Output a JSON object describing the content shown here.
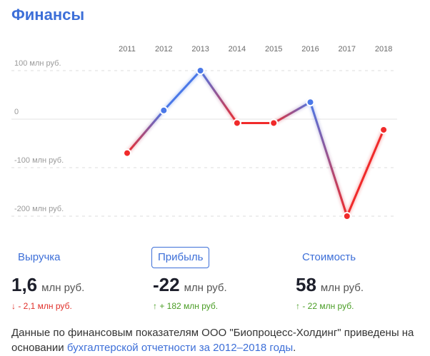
{
  "section_title": "Финансы",
  "chart_data": {
    "type": "line",
    "x": [
      "2011",
      "2012",
      "2013",
      "2014",
      "2015",
      "2016",
      "2017",
      "2018"
    ],
    "series": [
      {
        "values": [
          -70,
          18,
          100,
          -8,
          -8,
          35,
          -200,
          -22
        ]
      }
    ],
    "y_ticks": [
      {
        "value": 100,
        "label": "100 млн руб."
      },
      {
        "value": 0,
        "label": "0"
      },
      {
        "value": -100,
        "label": "-100 млн руб."
      },
      {
        "value": -200,
        "label": "-200 млн руб."
      }
    ],
    "ylim": [
      -210,
      115
    ],
    "colors": {
      "positive": "#4a78e8",
      "negative": "#f02a2a"
    },
    "grid": true
  },
  "tabs": [
    {
      "label": "Выручка",
      "active": false
    },
    {
      "label": "Прибыль",
      "active": true
    },
    {
      "label": "Стоимость",
      "active": false
    }
  ],
  "metrics": [
    {
      "value": "1,6",
      "unit": "млн руб.",
      "delta": "↓ - 2,1 млн руб.",
      "direction": "down"
    },
    {
      "value": "-22",
      "unit": "млн руб.",
      "delta": "↑ + 182 млн руб.",
      "direction": "up"
    },
    {
      "value": "58",
      "unit": "млн руб.",
      "delta": "↑ - 22 млн руб.",
      "direction": "up"
    }
  ],
  "footer": {
    "text": "Данные по финансовым показателям ООО \"Биопроцесс-Холдинг\" приведены на основании ",
    "link": "бухгалтерской отчетности за 2012–2018 годы",
    "suffix": "."
  }
}
